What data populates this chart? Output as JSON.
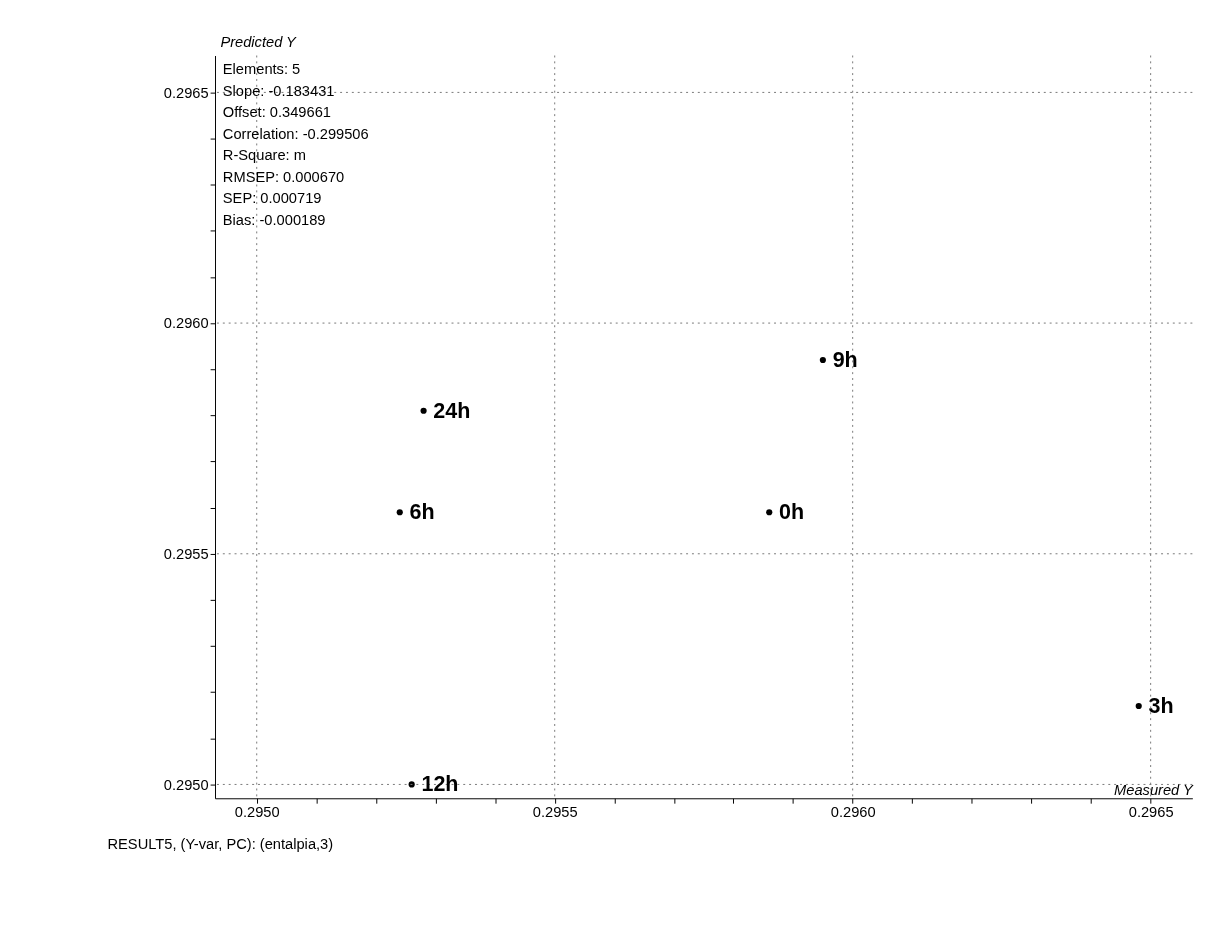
{
  "chart_data": {
    "type": "scatter",
    "xlabel": "Measured Y",
    "ylabel": "Predicted Y",
    "x": [
      0.29595,
      0.29528,
      0.29524,
      0.29586,
      0.29648,
      0.29526
    ],
    "values": [
      0.29592,
      0.29581,
      0.29559,
      0.29559,
      0.29517,
      0.295
    ],
    "color": "#000000",
    "marker": "circle",
    "grid": true,
    "xlim": [
      0.29493,
      0.29657
    ],
    "ylim": [
      0.29497,
      0.29658
    ],
    "xticks": [
      {
        "value": 0.295,
        "label": "0.2950"
      },
      {
        "value": 0.2951,
        "label": null
      },
      {
        "value": 0.2952,
        "label": null
      },
      {
        "value": 0.2953,
        "label": null
      },
      {
        "value": 0.2954,
        "label": null
      },
      {
        "value": 0.2955,
        "label": "0.2955"
      },
      {
        "value": 0.2956,
        "label": null
      },
      {
        "value": 0.2957,
        "label": null
      },
      {
        "value": 0.2958,
        "label": null
      },
      {
        "value": 0.2959,
        "label": null
      },
      {
        "value": 0.296,
        "label": "0.2960"
      },
      {
        "value": 0.2961,
        "label": null
      },
      {
        "value": 0.2962,
        "label": null
      },
      {
        "value": 0.2963,
        "label": null
      },
      {
        "value": 0.2964,
        "label": null
      },
      {
        "value": 0.2965,
        "label": "0.2965"
      }
    ],
    "yticks": [
      {
        "value": 0.295,
        "label": "0.2950"
      },
      {
        "value": 0.2951,
        "label": null
      },
      {
        "value": 0.2952,
        "label": null
      },
      {
        "value": 0.2953,
        "label": null
      },
      {
        "value": 0.2954,
        "label": null
      },
      {
        "value": 0.2955,
        "label": "0.2955"
      },
      {
        "value": 0.2956,
        "label": null
      },
      {
        "value": 0.2957,
        "label": null
      },
      {
        "value": 0.2958,
        "label": null
      },
      {
        "value": 0.2959,
        "label": null
      },
      {
        "value": 0.296,
        "label": "0.2960"
      },
      {
        "value": 0.2961,
        "label": null
      },
      {
        "value": 0.2962,
        "label": null
      },
      {
        "value": 0.2963,
        "label": null
      },
      {
        "value": 0.2964,
        "label": null
      },
      {
        "value": 0.2965,
        "label": "0.2965"
      }
    ],
    "annotations": [
      {
        "text": "9h",
        "x": 0.29595,
        "y": 0.29592
      },
      {
        "text": "24h",
        "x": 0.29528,
        "y": 0.29581
      },
      {
        "text": "6h",
        "x": 0.29524,
        "y": 0.29559
      },
      {
        "text": "0h",
        "x": 0.29586,
        "y": 0.29559
      },
      {
        "text": "3h",
        "x": 0.29648,
        "y": 0.29517
      },
      {
        "text": "12h",
        "x": 0.29526,
        "y": 0.295
      },
      "Elements: 5",
      "Slope: -0.183431",
      "Offset: 0.349661",
      "Correlation: -0.299506",
      "R-Square: m",
      "RMSEP: 0.000670",
      "SEP: 0.000719",
      "Bias: -0.000189",
      "RESULT5, (Y-var, PC): (entalpia,3)"
    ]
  }
}
